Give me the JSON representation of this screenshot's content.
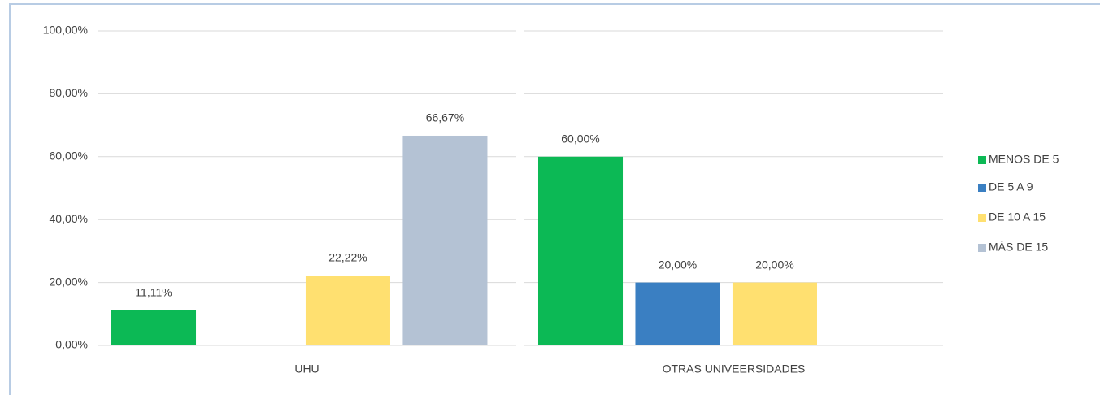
{
  "chart_data": {
    "type": "bar",
    "categories": [
      "UHU",
      "OTRAS UNIVEERSIDADES"
    ],
    "series": [
      {
        "name": "MENOS DE 5",
        "color": "#0cb955",
        "values": [
          11.11,
          60
        ],
        "value_labels": [
          "11,11%",
          "60,00%"
        ]
      },
      {
        "name": "DE 5 A 9",
        "color": "#3a7fc2",
        "values": [
          null,
          20
        ],
        "value_labels": [
          null,
          "20,00%"
        ]
      },
      {
        "name": "DE 10 A 15",
        "color": "#ffe070",
        "values": [
          22.22,
          20
        ],
        "value_labels": [
          "22,22%",
          "20,00%"
        ]
      },
      {
        "name": "MÁS DE 15",
        "color": "#b4c2d4",
        "values": [
          66.67,
          null
        ],
        "value_labels": [
          "66,67%",
          null
        ]
      }
    ],
    "ylim": [
      0,
      100
    ],
    "yticks": [
      {
        "value": 0,
        "label": "0,00%"
      },
      {
        "value": 20,
        "label": "20,00%"
      },
      {
        "value": 40,
        "label": "40,00%"
      },
      {
        "value": 60,
        "label": "60,00%"
      },
      {
        "value": 80,
        "label": "80,00%"
      },
      {
        "value": 100,
        "label": "100,00%"
      }
    ],
    "grid": true,
    "legend": "right"
  }
}
